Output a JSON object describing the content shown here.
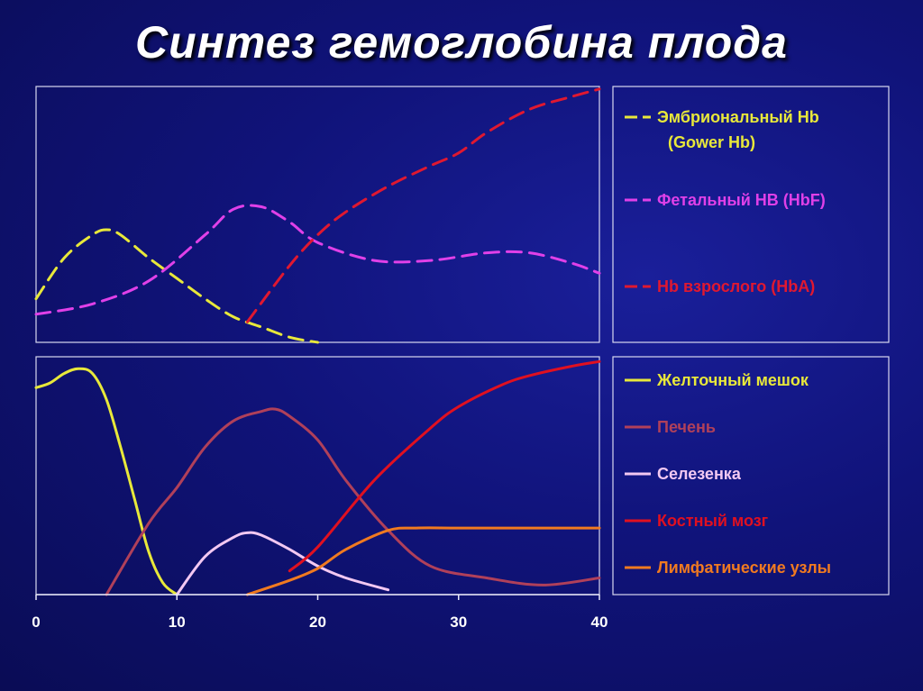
{
  "title": "Синтез гемоглобина плода",
  "chart_data": [
    {
      "type": "line",
      "panel": "top",
      "xlim": [
        0,
        40
      ],
      "series": [
        {
          "name": "Эмбриональный Hb (Gower Hb)",
          "name_lines": [
            "Эмбриональный Hb",
            "(Gower Hb)"
          ],
          "color": "#e8e83a",
          "dash": true,
          "x": [
            0,
            2,
            4,
            5,
            6,
            8,
            10,
            12,
            14,
            16,
            18,
            20
          ],
          "y": [
            0.17,
            0.33,
            0.42,
            0.44,
            0.42,
            0.33,
            0.25,
            0.17,
            0.1,
            0.06,
            0.02,
            0.0
          ]
        },
        {
          "name": "Фетальный HB (HbF)",
          "name_lines": [
            "Фетальный HB (HbF)"
          ],
          "color": "#e040e8",
          "dash": true,
          "x": [
            0,
            4,
            8,
            12,
            14,
            16,
            18,
            20,
            24,
            28,
            32,
            35,
            38,
            40
          ],
          "y": [
            0.11,
            0.15,
            0.24,
            0.42,
            0.52,
            0.53,
            0.47,
            0.39,
            0.32,
            0.32,
            0.35,
            0.35,
            0.31,
            0.27
          ]
        },
        {
          "name": "Hb взрослого (HbA)",
          "name_lines": [
            "Hb взрослого (HbA)"
          ],
          "color": "#e01830",
          "dash": true,
          "x": [
            15,
            18,
            20,
            22,
            25,
            28,
            30,
            32,
            35,
            38,
            40
          ],
          "y": [
            0.08,
            0.3,
            0.42,
            0.51,
            0.61,
            0.69,
            0.74,
            0.82,
            0.91,
            0.96,
            0.99
          ]
        }
      ]
    },
    {
      "type": "line",
      "panel": "bottom",
      "xlim": [
        0,
        40
      ],
      "x_ticks": [
        "0",
        "10",
        "20",
        "30",
        "40"
      ],
      "series": [
        {
          "name": "Желточный мешок",
          "color": "#e8e83a",
          "x": [
            0,
            1,
            2,
            3,
            4,
            5,
            6,
            7,
            8,
            9,
            10
          ],
          "y": [
            0.87,
            0.89,
            0.93,
            0.95,
            0.93,
            0.82,
            0.62,
            0.4,
            0.18,
            0.05,
            0.0
          ]
        },
        {
          "name": "Печень",
          "color": "#b0405a",
          "x": [
            5,
            8,
            10,
            12,
            14,
            16,
            17,
            18,
            20,
            22,
            25,
            28,
            32,
            36,
            40
          ],
          "y": [
            0.0,
            0.3,
            0.45,
            0.62,
            0.73,
            0.77,
            0.78,
            0.75,
            0.65,
            0.48,
            0.27,
            0.12,
            0.07,
            0.04,
            0.07
          ]
        },
        {
          "name": "Селезенка",
          "color": "#f2c8f2",
          "x": [
            10,
            12,
            14,
            15,
            16,
            18,
            20,
            22,
            25
          ],
          "y": [
            0.0,
            0.16,
            0.24,
            0.26,
            0.25,
            0.19,
            0.12,
            0.07,
            0.02
          ]
        },
        {
          "name": "Костный мозг",
          "color": "#e01020",
          "x": [
            18,
            20,
            24,
            28,
            30,
            33,
            35,
            38,
            40
          ],
          "y": [
            0.1,
            0.2,
            0.48,
            0.7,
            0.79,
            0.88,
            0.92,
            0.96,
            0.98
          ]
        },
        {
          "name": "Лимфатические узлы",
          "color": "#f07a20",
          "x": [
            15,
            18,
            20,
            22,
            25,
            27,
            30,
            35,
            40
          ],
          "y": [
            0.0,
            0.06,
            0.11,
            0.19,
            0.27,
            0.28,
            0.28,
            0.28,
            0.28
          ]
        }
      ]
    }
  ]
}
